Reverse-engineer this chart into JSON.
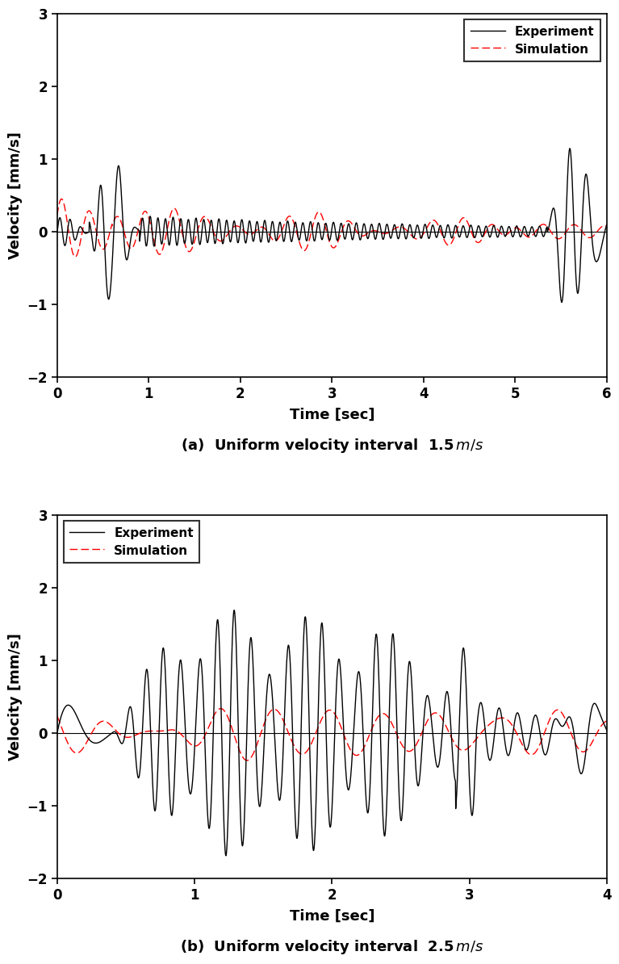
{
  "fig_width": 7.92,
  "fig_height": 11.77,
  "subplot_a": {
    "xlim": [
      0,
      6
    ],
    "ylim": [
      -2,
      3
    ],
    "yticks": [
      -2,
      -1,
      0,
      1,
      2,
      3
    ],
    "xticks": [
      0,
      1,
      2,
      3,
      4,
      5,
      6
    ],
    "xlabel": "Time [sec]",
    "ylabel": "Velocity [mm/s]",
    "caption": "(a)  Uniform velocity interval  $1.5\\,m/s$"
  },
  "subplot_b": {
    "xlim": [
      0,
      4
    ],
    "ylim": [
      -2,
      3
    ],
    "yticks": [
      -2,
      -1,
      0,
      1,
      2,
      3
    ],
    "xticks": [
      0,
      1,
      2,
      3,
      4
    ],
    "xlabel": "Time [sec]",
    "ylabel": "Velocity [mm/s]",
    "caption": "(b)  Uniform velocity interval  $2.5\\,m/s$"
  },
  "legend_labels": [
    "Experiment",
    "Simulation"
  ],
  "exp_color": "#000000",
  "sim_color": "#ff0000",
  "exp_lw": 1.0,
  "sim_lw": 1.0
}
